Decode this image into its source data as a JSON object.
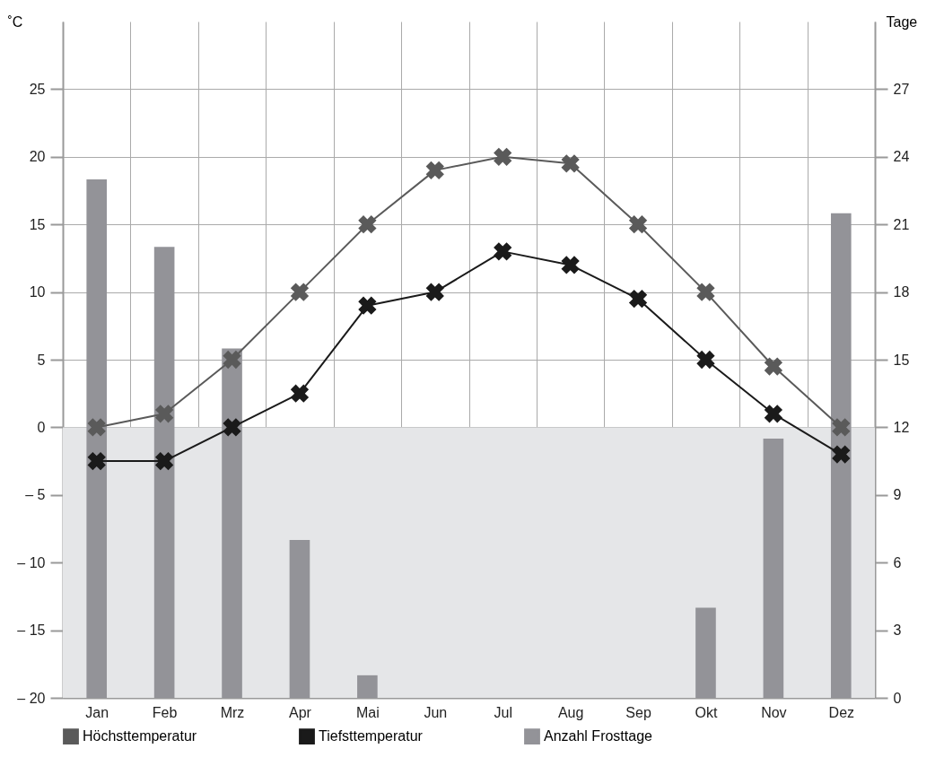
{
  "chart_data": {
    "type": "line",
    "categories": [
      "Jan",
      "Feb",
      "Mrz",
      "Apr",
      "Mai",
      "Jun",
      "Jul",
      "Aug",
      "Sep",
      "Okt",
      "Nov",
      "Dez"
    ],
    "ylabel": "˚C",
    "y2label": "Tage",
    "ylim": [
      -20,
      30
    ],
    "yticks": [
      {
        "value": -20,
        "label": "– 20"
      },
      {
        "value": -15,
        "label": "– 15"
      },
      {
        "value": -10,
        "label": "– 10"
      },
      {
        "value": -5,
        "label": "– 5"
      },
      0,
      5,
      10,
      15,
      20,
      25
    ],
    "y2lim": [
      0,
      30
    ],
    "y2ticks": [
      0,
      3,
      6,
      9,
      12,
      15,
      18,
      21,
      24,
      27
    ],
    "series": [
      {
        "name": "Höchsttemperatur",
        "color": "#5a5a5a",
        "values": [
          0,
          1,
          5,
          10,
          15,
          19,
          20,
          19.5,
          15,
          10,
          4.5,
          0
        ]
      },
      {
        "name": "Tiefsttemperatur",
        "color": "#1a1a1a",
        "values": [
          -2.5,
          -2.5,
          0,
          2.5,
          9,
          10,
          13,
          12,
          9.5,
          5,
          1,
          -2
        ]
      },
      {
        "name": "Anzahl Frosttage",
        "type": "bar",
        "axis": "y2",
        "color": "#939398",
        "values": [
          23,
          20,
          15.5,
          7,
          1,
          0,
          0,
          0,
          0,
          4,
          11.5,
          21.5
        ]
      }
    ],
    "bands": [
      {
        "axis": "y",
        "from": -20,
        "to": 0,
        "color": "#e5e6e8"
      }
    ],
    "grid": true,
    "legend": "bottom",
    "marker": "cross",
    "line_style": "solid"
  }
}
